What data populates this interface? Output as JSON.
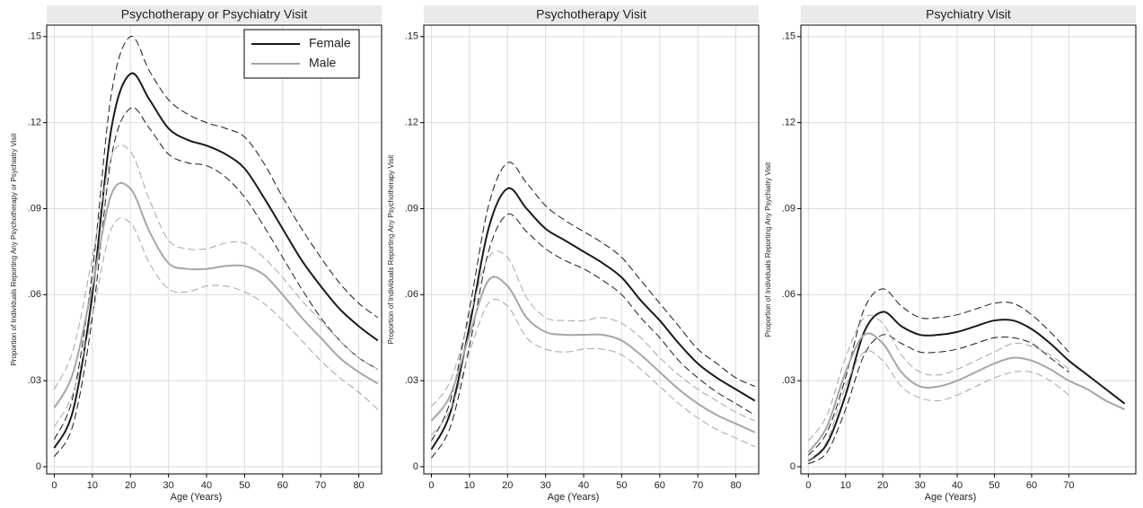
{
  "chart_data": [
    {
      "type": "line",
      "title": "Psychotherapy or Psychiatry Visit",
      "x_label": "Age (Years)",
      "y_label": "Proportion of Individuals Reporting Any Psychotherapy or Psychiatry Visit",
      "x": [
        0,
        5,
        10,
        15,
        20,
        25,
        30,
        35,
        40,
        45,
        50,
        55,
        60,
        65,
        70,
        75,
        80,
        85
      ],
      "series": [
        {
          "name": "Female",
          "color": "#1a1a1a",
          "values": [
            0.0065,
            0.02,
            0.06,
            0.118,
            0.137,
            0.128,
            0.118,
            0.114,
            0.112,
            0.109,
            0.104,
            0.094,
            0.083,
            0.072,
            0.063,
            0.055,
            0.049,
            0.044
          ],
          "upper": [
            0.0095,
            0.025,
            0.068,
            0.13,
            0.15,
            0.138,
            0.128,
            0.123,
            0.12,
            0.118,
            0.115,
            0.106,
            0.094,
            0.083,
            0.073,
            0.064,
            0.057,
            0.052
          ],
          "lower": [
            0.0035,
            0.015,
            0.052,
            0.108,
            0.125,
            0.118,
            0.109,
            0.106,
            0.105,
            0.101,
            0.094,
            0.084,
            0.073,
            0.062,
            0.052,
            0.044,
            0.038,
            0.034
          ]
        },
        {
          "name": "Male",
          "color": "#a6a6a6",
          "values": [
            0.0205,
            0.033,
            0.063,
            0.095,
            0.097,
            0.082,
            0.071,
            0.069,
            0.069,
            0.07,
            0.07,
            0.067,
            0.06,
            0.052,
            0.045,
            0.038,
            0.033,
            0.029
          ],
          "upper": [
            0.027,
            0.041,
            0.073,
            0.108,
            0.11,
            0.093,
            0.079,
            0.076,
            0.076,
            0.078,
            0.078,
            0.073,
            0.066,
            0.058,
            0.051,
            0.044,
            0.038,
            0.034
          ],
          "lower": [
            0.014,
            0.026,
            0.053,
            0.083,
            0.085,
            0.071,
            0.062,
            0.061,
            0.063,
            0.063,
            0.061,
            0.057,
            0.051,
            0.044,
            0.037,
            0.031,
            0.026,
            0.02
          ]
        }
      ],
      "xlim": [
        -2,
        86
      ],
      "xticks": [
        0,
        10,
        20,
        30,
        40,
        50,
        60,
        70,
        80
      ],
      "ylim": [
        -0.0025,
        0.154
      ],
      "yticks": [
        0,
        {
          "value": 0.03,
          "label": ".03"
        },
        {
          "value": 0.06,
          "label": ".06"
        },
        {
          "value": 0.09,
          "label": ".09"
        },
        {
          "value": 0.12,
          "label": ".12"
        },
        {
          "value": 0.15,
          "label": ".15"
        }
      ],
      "grid": true,
      "legend": "upper right"
    },
    {
      "type": "line",
      "title": "Psychotherapy Visit",
      "x_label": "Age (Years)",
      "y_label": "Proportion of Individuals Reporting Any Psychotherapy Visit",
      "x": [
        0,
        5,
        10,
        15,
        20,
        25,
        30,
        35,
        40,
        45,
        50,
        55,
        60,
        65,
        70,
        75,
        80,
        85
      ],
      "series": [
        {
          "color": "#1a1a1a",
          "values": [
            0.006,
            0.019,
            0.049,
            0.083,
            0.097,
            0.09,
            0.083,
            0.079,
            0.075,
            0.071,
            0.066,
            0.058,
            0.051,
            0.043,
            0.036,
            0.031,
            0.027,
            0.023
          ],
          "upper": [
            0.009,
            0.023,
            0.055,
            0.091,
            0.106,
            0.099,
            0.091,
            0.086,
            0.082,
            0.078,
            0.073,
            0.065,
            0.057,
            0.049,
            0.041,
            0.036,
            0.031,
            0.028
          ],
          "lower": [
            0.003,
            0.014,
            0.042,
            0.075,
            0.088,
            0.082,
            0.076,
            0.072,
            0.069,
            0.065,
            0.06,
            0.052,
            0.045,
            0.037,
            0.031,
            0.026,
            0.022,
            0.018
          ]
        },
        {
          "color": "#a6a6a6",
          "values": [
            0.016,
            0.025,
            0.046,
            0.065,
            0.063,
            0.052,
            0.047,
            0.046,
            0.046,
            0.046,
            0.044,
            0.039,
            0.033,
            0.027,
            0.022,
            0.018,
            0.015,
            0.012
          ],
          "upper": [
            0.021,
            0.03,
            0.052,
            0.073,
            0.073,
            0.059,
            0.052,
            0.051,
            0.051,
            0.052,
            0.05,
            0.045,
            0.038,
            0.032,
            0.027,
            0.023,
            0.019,
            0.016
          ],
          "lower": [
            0.011,
            0.02,
            0.04,
            0.057,
            0.056,
            0.045,
            0.041,
            0.04,
            0.041,
            0.041,
            0.039,
            0.034,
            0.028,
            0.022,
            0.017,
            0.013,
            0.01,
            0.007
          ]
        }
      ],
      "xlim": [
        -2,
        86
      ],
      "xticks": [
        0,
        10,
        20,
        30,
        40,
        50,
        60,
        70,
        80
      ],
      "ylim": [
        -0.0025,
        0.154
      ],
      "yticks": [
        0,
        {
          "value": 0.03,
          "label": ".03"
        },
        {
          "value": 0.06,
          "label": ".06"
        },
        {
          "value": 0.09,
          "label": ".09"
        },
        {
          "value": 0.12,
          "label": ".12"
        },
        {
          "value": 0.15,
          "label": ".15"
        }
      ],
      "grid": true
    },
    {
      "type": "line",
      "title": "Psychiatry Visit",
      "x_label": "Age (Years)",
      "y_label": "Proportion of Individuals Reporting Any Psychiatry Visit",
      "x": [
        0,
        5,
        10,
        15,
        20,
        25,
        30,
        35,
        40,
        45,
        50,
        55,
        60,
        65,
        70,
        75,
        80,
        85
      ],
      "series": [
        {
          "color": "#1a1a1a",
          "values": [
            0.002,
            0.008,
            0.025,
            0.047,
            0.054,
            0.049,
            0.046,
            0.046,
            0.047,
            0.049,
            0.051,
            0.051,
            0.048,
            0.043,
            0.037,
            0.032,
            0.027,
            0.022
          ],
          "upper": [
            0.004,
            0.012,
            0.031,
            0.055,
            0.062,
            0.056,
            0.052,
            0.052,
            0.053,
            0.055,
            0.057,
            0.057,
            0.053,
            0.047,
            0.04,
            null,
            null,
            null
          ],
          "lower": [
            0.001,
            0.005,
            0.02,
            0.039,
            0.046,
            0.043,
            0.04,
            0.04,
            0.041,
            0.043,
            0.045,
            0.045,
            0.043,
            0.038,
            0.033,
            null,
            null,
            null
          ]
        },
        {
          "color": "#a6a6a6",
          "values": [
            0.005,
            0.014,
            0.033,
            0.046,
            0.043,
            0.033,
            0.028,
            0.028,
            0.03,
            0.033,
            0.036,
            0.038,
            0.037,
            0.034,
            0.03,
            0.027,
            0.023,
            0.02
          ],
          "upper": [
            0.009,
            0.018,
            0.038,
            0.052,
            0.05,
            0.039,
            0.033,
            0.032,
            0.034,
            0.037,
            0.04,
            0.043,
            0.042,
            0.039,
            0.034,
            null,
            null,
            null
          ],
          "lower": [
            0.002,
            0.009,
            0.028,
            0.04,
            0.037,
            0.028,
            0.024,
            0.023,
            0.025,
            0.028,
            0.031,
            0.033,
            0.033,
            0.03,
            0.025,
            null,
            null,
            null
          ]
        }
      ],
      "xlim": [
        -2,
        88
      ],
      "xticks": [
        0,
        10,
        20,
        30,
        40,
        50,
        60,
        70
      ],
      "ylim": [
        -0.0025,
        0.154
      ],
      "yticks": [
        0,
        {
          "value": 0.03,
          "label": ".03"
        },
        {
          "value": 0.06,
          "label": ".06"
        },
        {
          "value": 0.09,
          "label": ".09"
        },
        {
          "value": 0.12,
          "label": ".12"
        },
        {
          "value": 0.15,
          "label": ".15"
        }
      ],
      "grid": true
    }
  ]
}
